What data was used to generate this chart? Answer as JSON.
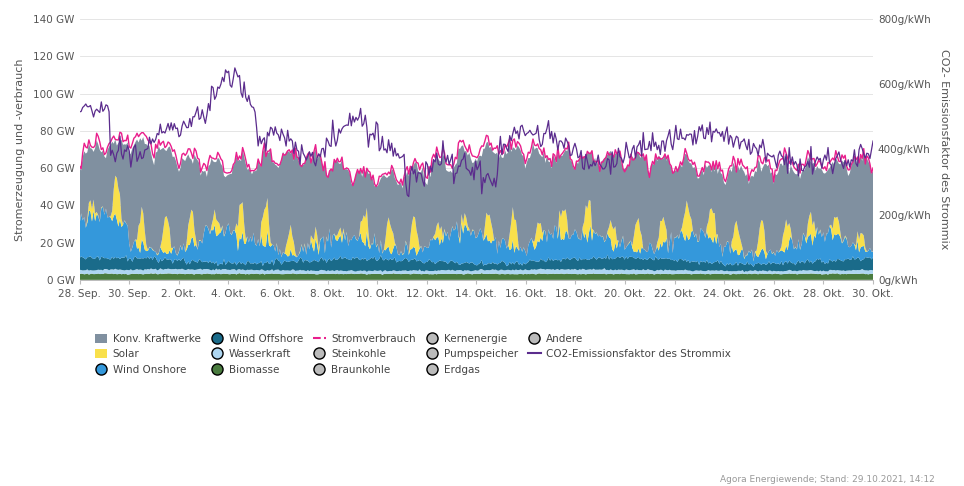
{
  "ylabel_left": "Stromerzeugung und -verbrauch",
  "ylabel_right": "CO2- Emissionsfaktor des Strommix",
  "ylim_left": [
    0,
    140
  ],
  "ylim_right": [
    0,
    800
  ],
  "yticks_left": [
    0,
    20,
    40,
    60,
    80,
    100,
    120,
    140
  ],
  "ytick_labels_left": [
    "0 GW",
    "20 GW",
    "40 GW",
    "60 GW",
    "80 GW",
    "100 GW",
    "120 GW",
    "140 GW"
  ],
  "yticks_right": [
    0,
    200,
    400,
    600,
    800
  ],
  "ytick_labels_right": [
    "0g/kWh",
    "200g/kWh",
    "400g/kWh",
    "600g/kWh",
    "800g/kWh"
  ],
  "xtick_labels": [
    "28. Sep.",
    "30. Sep.",
    "2. Okt.",
    "4. Okt.",
    "6. Okt.",
    "8. Okt.",
    "10. Okt.",
    "12. Okt.",
    "14. Okt.",
    "16. Okt.",
    "18. Okt.",
    "20. Okt.",
    "22. Okt.",
    "24. Okt.",
    "26. Okt.",
    "28. Okt.",
    "30. Okt."
  ],
  "n_points": 512,
  "colors": {
    "biomasse": "#4a7c3f",
    "wind_offshore": "#1a6b8a",
    "wind_onshore": "#3498db",
    "wasserkraft": "#aed6f1",
    "solar": "#f9e04b",
    "konv_kraftwerke": "#8090a0",
    "stromverbrauch": "#e91e8c",
    "co2": "#5b2c8d"
  },
  "background_color": "#ffffff",
  "grid_color": "#e0e0e0",
  "footer": "Agora Energiewende; Stand: 29.10.2021, 14:12"
}
